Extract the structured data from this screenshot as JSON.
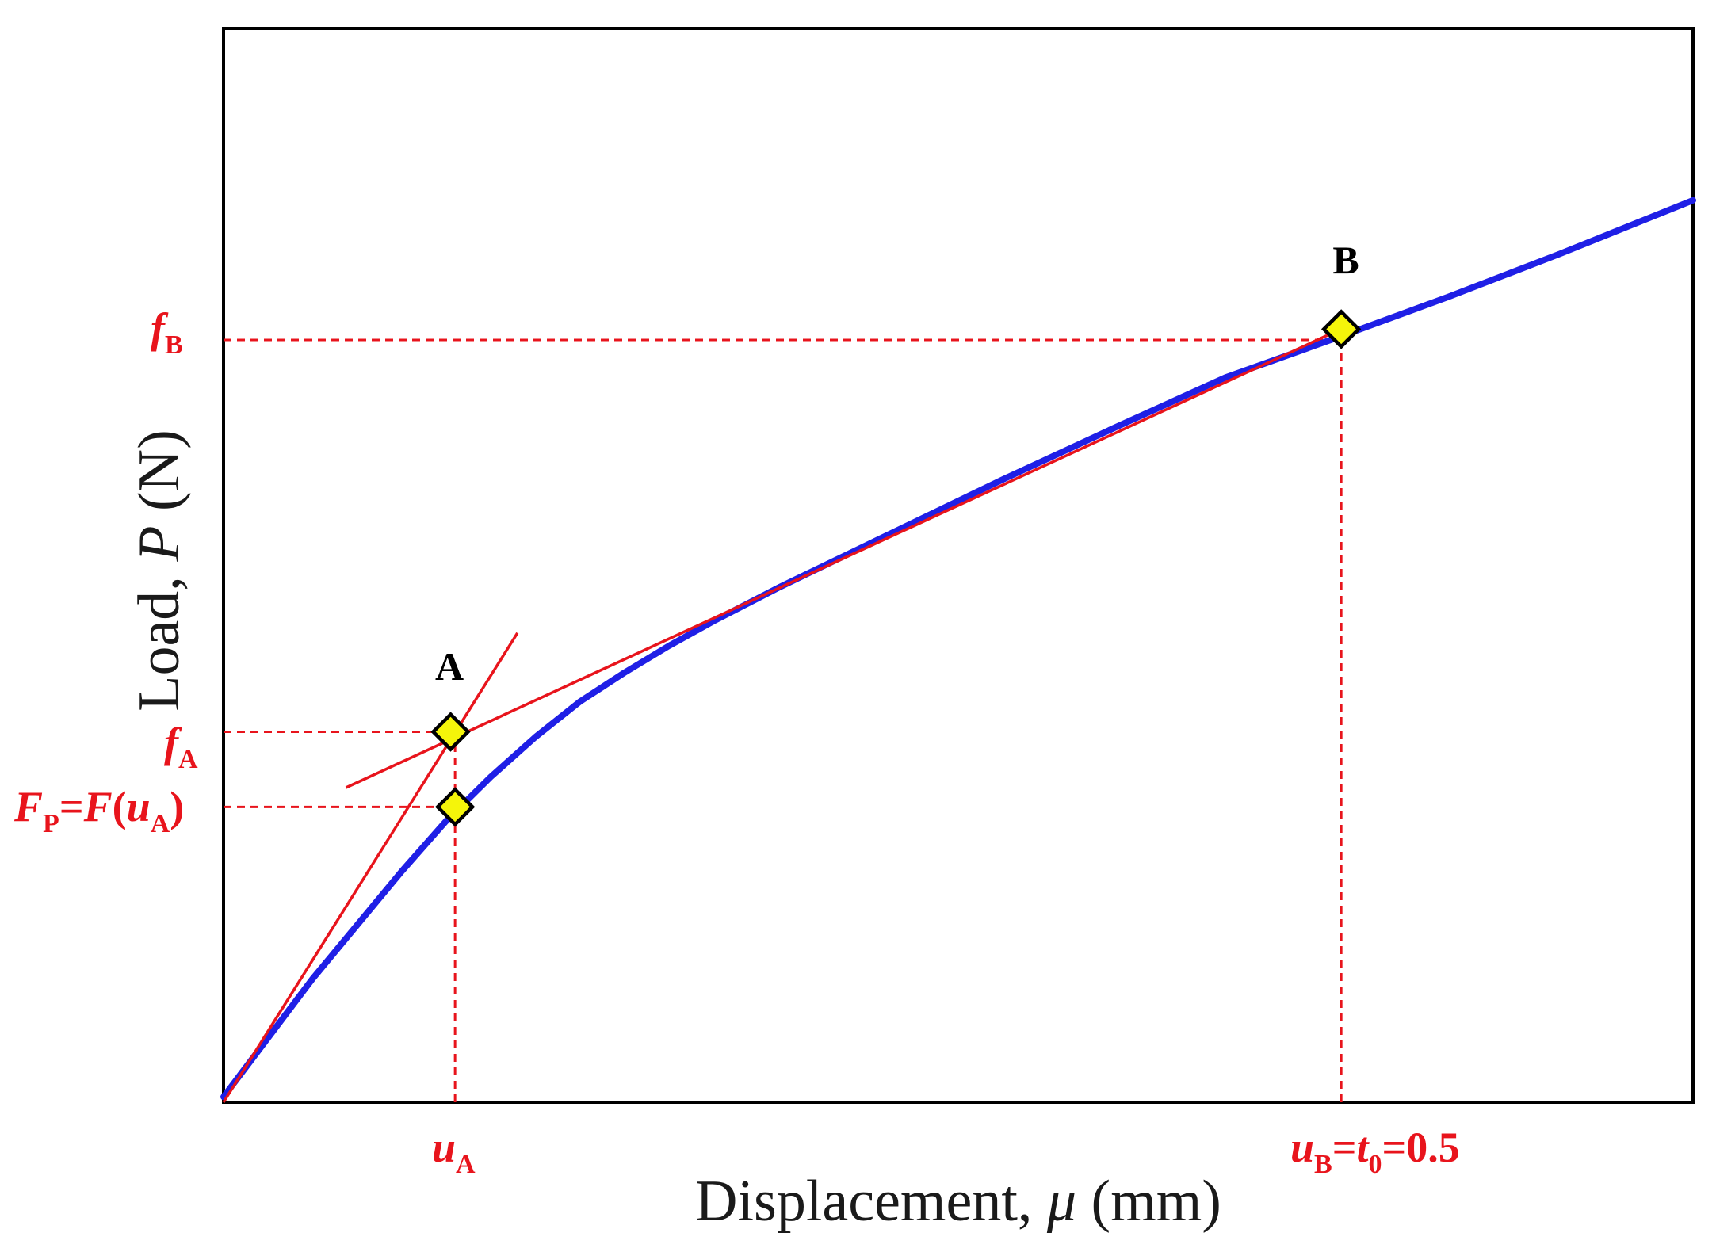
{
  "colors": {
    "curve": "#1f1fe6",
    "construction": "#e8141c",
    "marker_fill": "#f5f50a",
    "marker_stroke": "#000000",
    "frame": "#000000"
  },
  "chart_data": {
    "type": "line",
    "xlabel": "Displacement, μ (mm)",
    "ylabel": "Load, P (N)",
    "xlim": [
      0,
      0.66
    ],
    "ylim": [
      0,
      1.0
    ],
    "grid": false,
    "x_tick_values": [
      0.104,
      0.5
    ],
    "y_tick_values": [
      0.681,
      0.345,
      0.275
    ],
    "series": [
      {
        "values_x": [
          0,
          0.02,
          0.04,
          0.06,
          0.08,
          0.1,
          0.12,
          0.14,
          0.16,
          0.18,
          0.2,
          0.22,
          0.25,
          0.3,
          0.35,
          0.4,
          0.45,
          0.5,
          0.55,
          0.6,
          0.66
        ],
        "values_y": [
          0.005,
          0.06,
          0.115,
          0.165,
          0.215,
          0.262,
          0.303,
          0.34,
          0.373,
          0.4,
          0.425,
          0.448,
          0.48,
          0.53,
          0.58,
          0.628,
          0.675,
          0.712,
          0.75,
          0.79,
          0.84
        ]
      }
    ],
    "tangent_lines": [
      {
        "x": [
          0,
          0.132
        ],
        "y": [
          0,
          0.437
        ]
      },
      {
        "x": [
          0.055,
          0.507
        ],
        "y": [
          0.293,
          0.725
        ]
      }
    ],
    "guide_lines": [
      {
        "x": [
          0.104,
          0.104
        ],
        "y": [
          0,
          0.345
        ]
      },
      {
        "x": [
          0,
          0.104
        ],
        "y": [
          0.345,
          0.345
        ]
      },
      {
        "x": [
          0,
          0.104
        ],
        "y": [
          0.275,
          0.275
        ]
      },
      {
        "x": [
          0.502,
          0.502
        ],
        "y": [
          0,
          0.71
        ]
      },
      {
        "x": [
          0,
          0.502
        ],
        "y": [
          0.71,
          0.71
        ]
      }
    ],
    "markers": [
      {
        "x": 0.102,
        "y": 0.345
      },
      {
        "x": 0.104,
        "y": 0.275
      },
      {
        "x": 0.502,
        "y": 0.72
      }
    ],
    "annotations": {
      "point_a": "A",
      "point_b": "B"
    },
    "tick_labels": {
      "ua_main": "u",
      "ua_sub": "A",
      "ub_main": "u",
      "ub_sub": "B",
      "ub_eq": "=",
      "ub_t": "t",
      "ub_t_sub": "0",
      "ub_val": "=0.5",
      "fb_main": "f",
      "fb_sub": "B",
      "fa_main": "f",
      "fa_sub": "A",
      "fp_F1": "F",
      "fp_sub1": "P",
      "fp_eq": "=",
      "fp_F2": "F",
      "fp_open": "(",
      "fp_u": "u",
      "fp_sub2": "A",
      "fp_close": ")"
    },
    "axis_text": {
      "x_part1": "Displacement, ",
      "x_mu": "μ",
      "x_part2": " (mm)",
      "y_part1": "Load, ",
      "y_P": "P",
      "y_part2": " (N)"
    }
  }
}
